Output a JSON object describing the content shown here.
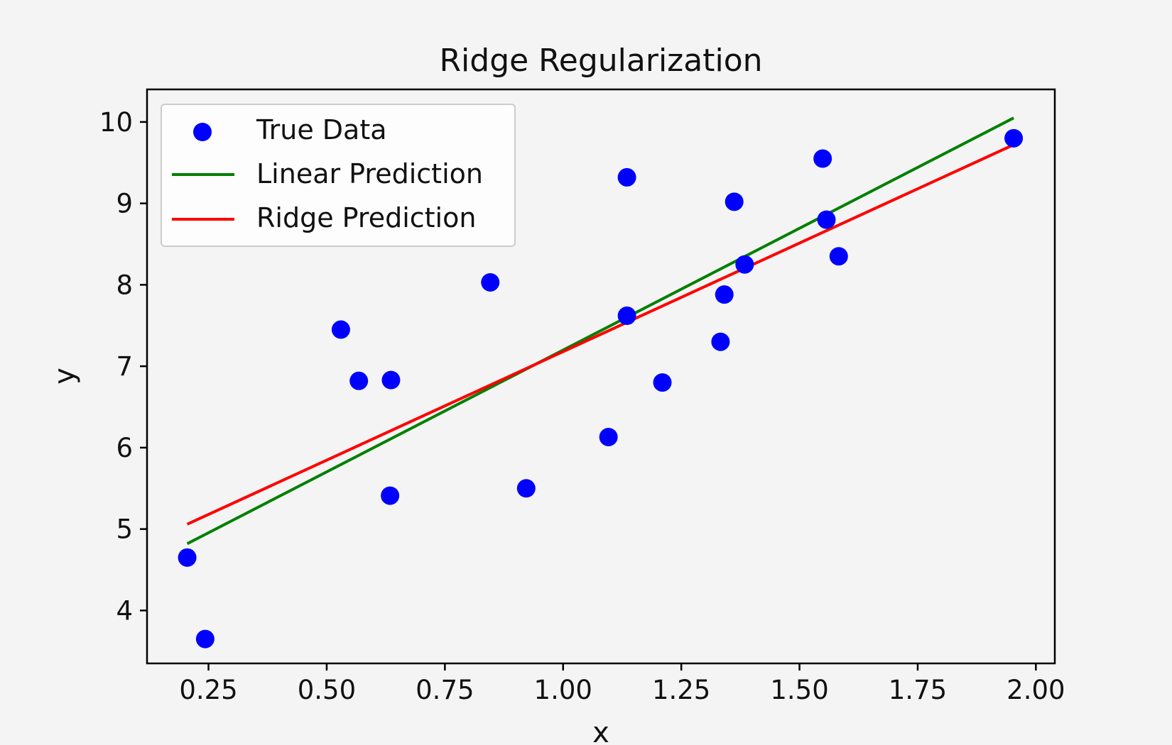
{
  "chart_data": {
    "type": "scatter",
    "title": "Ridge Regularization",
    "xlabel": "x",
    "ylabel": "y",
    "xlim": [
      0.12,
      2.04
    ],
    "ylim": [
      3.35,
      10.4
    ],
    "xticks": [
      0.25,
      0.5,
      0.75,
      1.0,
      1.25,
      1.5,
      1.75,
      2.0
    ],
    "xtick_labels": [
      "0.25",
      "0.50",
      "0.75",
      "1.00",
      "1.25",
      "1.50",
      "1.75",
      "2.00"
    ],
    "yticks": [
      4,
      5,
      6,
      7,
      8,
      9,
      10
    ],
    "ytick_labels": [
      "4",
      "5",
      "6",
      "7",
      "8",
      "9",
      "10"
    ],
    "grid": false,
    "legend_position": "top-left",
    "scatter": {
      "name": "True Data",
      "color": "#0000ff",
      "points": [
        {
          "x": 0.205,
          "y": 4.65
        },
        {
          "x": 0.243,
          "y": 3.65
        },
        {
          "x": 0.53,
          "y": 7.45
        },
        {
          "x": 0.568,
          "y": 6.82
        },
        {
          "x": 0.636,
          "y": 6.83
        },
        {
          "x": 0.634,
          "y": 5.41
        },
        {
          "x": 0.846,
          "y": 8.03
        },
        {
          "x": 0.922,
          "y": 5.5
        },
        {
          "x": 1.096,
          "y": 6.13
        },
        {
          "x": 1.135,
          "y": 9.32
        },
        {
          "x": 1.135,
          "y": 7.62
        },
        {
          "x": 1.21,
          "y": 6.8
        },
        {
          "x": 1.333,
          "y": 7.3
        },
        {
          "x": 1.341,
          "y": 7.88
        },
        {
          "x": 1.362,
          "y": 9.02
        },
        {
          "x": 1.384,
          "y": 8.25
        },
        {
          "x": 1.549,
          "y": 9.55
        },
        {
          "x": 1.557,
          "y": 8.8
        },
        {
          "x": 1.583,
          "y": 8.35
        },
        {
          "x": 1.953,
          "y": 9.8
        }
      ]
    },
    "lines": [
      {
        "name": "Linear Prediction",
        "color": "#008000",
        "points": [
          {
            "x": 0.205,
            "y": 4.82
          },
          {
            "x": 1.953,
            "y": 10.05
          }
        ]
      },
      {
        "name": "Ridge Prediction",
        "color": "#ff0000",
        "points": [
          {
            "x": 0.205,
            "y": 5.06
          },
          {
            "x": 1.953,
            "y": 9.72
          }
        ]
      }
    ],
    "legend": [
      {
        "label": "True Data",
        "kind": "marker",
        "color": "#0000ff"
      },
      {
        "label": "Linear Prediction",
        "kind": "line",
        "color": "#008000"
      },
      {
        "label": "Ridge Prediction",
        "kind": "line",
        "color": "#ff0000"
      }
    ]
  }
}
